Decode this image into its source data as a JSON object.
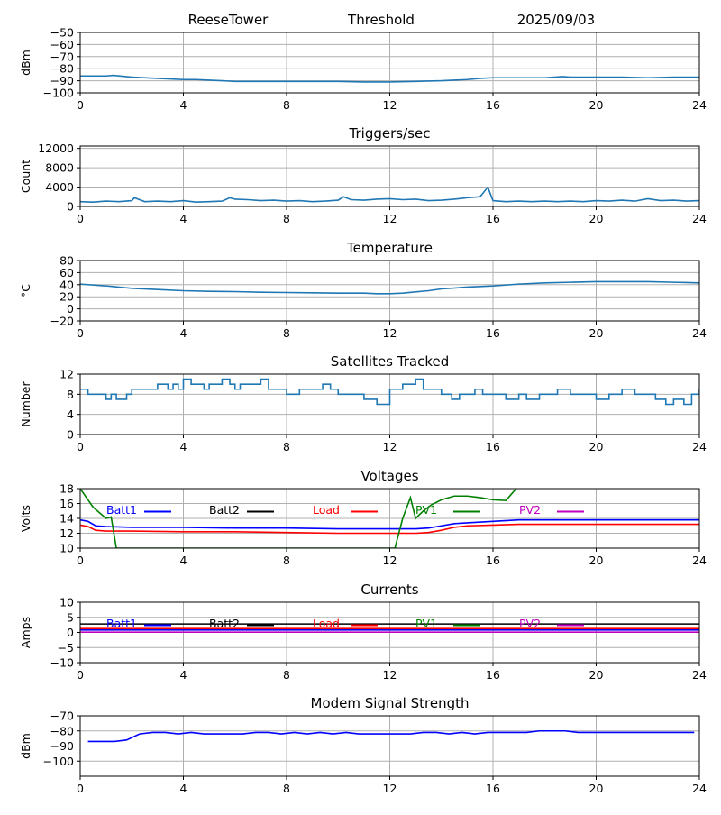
{
  "header": {
    "station": "ReeseTower",
    "title": "Threshold",
    "date": "2025/09/03"
  },
  "legend_labels": [
    "Batt1",
    "Batt2",
    "Load",
    "PV1",
    "PV2"
  ],
  "colors": {
    "main": "#1f77b4",
    "Batt1": "#0000ff",
    "Batt2": "#000000",
    "Load": "#ff0000",
    "PV1": "#008000",
    "PV2": "#bf00bf",
    "grid": "#b0b0b0"
  },
  "chart_data": [
    {
      "type": "line",
      "title": "",
      "xlabel": "",
      "ylabel": "dBm",
      "xlim": [
        0,
        24
      ],
      "ylim": [
        -100,
        -50
      ],
      "xticks": [
        "0",
        "4",
        "8",
        "12",
        "16",
        "20",
        "24"
      ],
      "yticks": [
        "−50",
        "−60",
        "−70",
        "−80",
        "−90",
        "−100"
      ],
      "ytick_values": [
        -50,
        -60,
        -70,
        -80,
        -90,
        -100
      ],
      "grid": true,
      "series": [
        {
          "color_key": "main",
          "x": [
            0,
            1,
            1.3,
            2,
            3,
            3.5,
            4,
            4.5,
            5,
            5.5,
            6,
            7,
            8,
            9,
            10,
            11,
            12,
            13,
            14,
            15,
            15.5,
            16,
            17,
            18,
            18.7,
            19,
            20,
            21,
            22,
            23,
            24
          ],
          "y": [
            -86,
            -86,
            -85.5,
            -87,
            -88,
            -88.5,
            -89,
            -89,
            -89.5,
            -90,
            -90.5,
            -90.5,
            -90.5,
            -90.5,
            -90.5,
            -91,
            -91,
            -90.5,
            -90,
            -89,
            -88,
            -87.5,
            -87.5,
            -87.5,
            -86.5,
            -87,
            -87,
            -87,
            -87.5,
            -87,
            -87
          ]
        }
      ]
    },
    {
      "type": "line",
      "title": "Triggers/sec",
      "xlabel": "",
      "ylabel": "Count",
      "xlim": [
        0,
        24
      ],
      "ylim": [
        0,
        12500
      ],
      "xticks": [
        "0",
        "4",
        "8",
        "12",
        "16",
        "20",
        "24"
      ],
      "yticks": [
        "0",
        "4000",
        "8000",
        "12000"
      ],
      "ytick_values": [
        0,
        4000,
        8000,
        12000
      ],
      "grid": true,
      "series": [
        {
          "color_key": "main",
          "x": [
            0,
            0.5,
            1,
            1.5,
            2,
            2.1,
            2.5,
            3,
            3.5,
            4,
            4.5,
            5,
            5.5,
            5.8,
            6,
            6.5,
            7,
            7.5,
            8,
            8.5,
            9,
            9.5,
            10,
            10.2,
            10.5,
            11,
            11.5,
            12,
            12.5,
            13,
            13.5,
            14,
            14.5,
            15,
            15.5,
            15.8,
            16,
            16.5,
            17,
            17.5,
            18,
            18.5,
            19,
            19.5,
            20,
            20.5,
            21,
            21.5,
            22,
            22.5,
            23,
            23.5,
            24
          ],
          "y": [
            1000,
            900,
            1100,
            1000,
            1200,
            1800,
            1000,
            1100,
            1000,
            1200,
            900,
            1000,
            1100,
            1800,
            1500,
            1400,
            1200,
            1300,
            1100,
            1200,
            1000,
            1100,
            1300,
            2000,
            1400,
            1300,
            1500,
            1600,
            1400,
            1500,
            1200,
            1300,
            1500,
            1800,
            2000,
            4000,
            1200,
            1000,
            1100,
            1000,
            1100,
            1000,
            1100,
            1000,
            1200,
            1100,
            1300,
            1100,
            1600,
            1200,
            1300,
            1100,
            1200
          ]
        }
      ]
    },
    {
      "type": "line",
      "title": "Temperature",
      "xlabel": "",
      "ylabel": "°C",
      "xlim": [
        0,
        24
      ],
      "ylim": [
        -20,
        80
      ],
      "xticks": [
        "0",
        "4",
        "8",
        "12",
        "16",
        "20",
        "24"
      ],
      "yticks": [
        "−20",
        "0",
        "20",
        "40",
        "60",
        "80"
      ],
      "ytick_values": [
        -20,
        0,
        20,
        40,
        60,
        80
      ],
      "grid": true,
      "series": [
        {
          "color_key": "main",
          "x": [
            0,
            1,
            2,
            3,
            4,
            5,
            6,
            7,
            8,
            9,
            10,
            11,
            11.5,
            12,
            12.5,
            13,
            13.5,
            14,
            15,
            16,
            17,
            18,
            19,
            20,
            21,
            22,
            23,
            24
          ],
          "y": [
            41,
            38,
            34,
            32,
            30,
            29,
            28.5,
            27.5,
            27,
            26.5,
            26,
            26,
            25,
            25,
            26,
            28,
            30,
            33,
            36,
            38,
            41,
            43,
            44,
            45,
            45,
            45,
            44,
            43
          ]
        }
      ]
    },
    {
      "type": "line",
      "title": "Satellites Tracked",
      "xlabel": "",
      "ylabel": "Number",
      "xlim": [
        0,
        24
      ],
      "ylim": [
        0,
        12
      ],
      "xticks": [
        "0",
        "4",
        "8",
        "12",
        "16",
        "20",
        "24"
      ],
      "yticks": [
        "0",
        "4",
        "8",
        "12"
      ],
      "ytick_values": [
        0,
        4,
        8,
        12
      ],
      "grid": true,
      "step": true,
      "series": [
        {
          "color_key": "main",
          "x": [
            0,
            0.3,
            0.8,
            1,
            1.2,
            1.4,
            1.8,
            2,
            2.5,
            3,
            3.4,
            3.6,
            3.8,
            4,
            4.3,
            4.8,
            5,
            5.5,
            5.8,
            6,
            6.2,
            6.5,
            7,
            7.3,
            7.6,
            8,
            8.5,
            9,
            9.4,
            9.7,
            10,
            10.5,
            11,
            11.5,
            12,
            12.5,
            12.8,
            13,
            13.3,
            13.6,
            14,
            14.4,
            14.7,
            15,
            15.3,
            15.6,
            16,
            16.5,
            17,
            17.3,
            17.8,
            18.5,
            19,
            19.5,
            20,
            20.5,
            21,
            21.5,
            22,
            22.3,
            22.7,
            23,
            23.4,
            23.7,
            24
          ],
          "y": [
            9,
            8,
            8,
            7,
            8,
            7,
            8,
            9,
            9,
            10,
            9,
            10,
            9,
            11,
            10,
            9,
            10,
            11,
            10,
            9,
            10,
            10,
            11,
            9,
            9,
            8,
            9,
            9,
            10,
            9,
            8,
            8,
            7,
            6,
            9,
            10,
            10,
            11,
            9,
            9,
            8,
            7,
            8,
            8,
            9,
            8,
            8,
            7,
            8,
            7,
            8,
            9,
            8,
            8,
            7,
            8,
            9,
            8,
            8,
            7,
            6,
            7,
            6,
            8,
            9
          ]
        }
      ]
    },
    {
      "type": "line",
      "title": "Voltages",
      "xlabel": "",
      "ylabel": "Volts",
      "xlim": [
        0,
        24
      ],
      "ylim": [
        10,
        18
      ],
      "xticks": [
        "0",
        "4",
        "8",
        "12",
        "16",
        "20",
        "24"
      ],
      "yticks": [
        "10",
        "12",
        "14",
        "16",
        "18"
      ],
      "ytick_values": [
        10,
        12,
        14,
        16,
        18
      ],
      "grid": true,
      "legend": [
        "Batt1",
        "Batt2",
        "Load",
        "PV1",
        "PV2"
      ],
      "legend_placement": "inside-top",
      "series": [
        {
          "name": "Batt1",
          "color_key": "Batt1",
          "x": [
            0,
            0.3,
            0.6,
            1,
            2,
            4,
            6,
            8,
            10,
            12,
            13,
            13.5,
            14,
            14.5,
            15,
            16,
            17,
            18,
            20,
            22,
            24
          ],
          "y": [
            13.8,
            13.6,
            13,
            12.9,
            12.8,
            12.8,
            12.7,
            12.7,
            12.6,
            12.6,
            12.6,
            12.7,
            13,
            13.3,
            13.4,
            13.6,
            13.8,
            13.8,
            13.8,
            13.8,
            13.8
          ]
        },
        {
          "name": "Load",
          "color_key": "Load",
          "x": [
            0,
            0.3,
            0.6,
            1,
            2,
            4,
            6,
            8,
            10,
            12,
            13,
            13.5,
            14,
            14.5,
            15,
            16,
            17,
            18,
            20,
            22,
            24
          ],
          "y": [
            13.1,
            12.9,
            12.4,
            12.3,
            12.3,
            12.2,
            12.2,
            12.1,
            12,
            12,
            12,
            12.1,
            12.4,
            12.8,
            13,
            13.1,
            13.2,
            13.2,
            13.2,
            13.2,
            13.2
          ]
        },
        {
          "name": "PV1",
          "color_key": "PV1",
          "x": [
            0,
            0.5,
            1,
            1.2,
            1.4,
            12.2,
            12.5,
            12.8,
            13,
            13.3,
            13.6,
            14,
            14.5,
            15,
            15.5,
            16,
            16.5,
            16.9
          ],
          "y": [
            18,
            15.5,
            14,
            14.2,
            10,
            10,
            14,
            16.8,
            14,
            15,
            15.8,
            16.5,
            17,
            17,
            16.8,
            16.5,
            16.4,
            18
          ]
        }
      ]
    },
    {
      "type": "line",
      "title": "Currents",
      "xlabel": "",
      "ylabel": "Amps",
      "xlim": [
        0,
        24
      ],
      "ylim": [
        -10,
        10
      ],
      "xticks": [
        "0",
        "4",
        "8",
        "12",
        "16",
        "20",
        "24"
      ],
      "yticks": [
        "−10",
        "−5",
        "0",
        "5",
        "10"
      ],
      "ytick_values": [
        -10,
        -5,
        0,
        5,
        10
      ],
      "grid": true,
      "legend": [
        "Batt1",
        "Batt2",
        "Load",
        "PV1",
        "PV2"
      ],
      "legend_placement": "inside-top",
      "series": [
        {
          "name": "Batt2",
          "color_key": "Batt2",
          "x": [
            0,
            2,
            4,
            6,
            8,
            10,
            12,
            14,
            16,
            18,
            20,
            22,
            24
          ],
          "y": [
            2.8,
            2.8,
            2.8,
            2.8,
            2.8,
            2.8,
            2.8,
            2.8,
            2.8,
            2.8,
            2.8,
            2.8,
            2.8
          ]
        },
        {
          "name": "Load",
          "color_key": "Load",
          "x": [
            0,
            24
          ],
          "y": [
            1.3,
            1.3
          ]
        },
        {
          "name": "Batt1",
          "color_key": "Batt1",
          "x": [
            0,
            24
          ],
          "y": [
            0.8,
            0.8
          ]
        },
        {
          "name": "PV2",
          "color_key": "PV2",
          "x": [
            0,
            24
          ],
          "y": [
            0.1,
            0.1
          ]
        }
      ]
    },
    {
      "type": "line",
      "title": "Modem Signal Strength",
      "xlabel": "",
      "ylabel": "dBm",
      "xlim": [
        0,
        24
      ],
      "ylim": [
        -110,
        -70
      ],
      "xticks": [
        "0",
        "4",
        "8",
        "12",
        "16",
        "20",
        "24"
      ],
      "yticks": [
        "−70",
        "−80",
        "−90",
        "−100"
      ],
      "ytick_values": [
        -70,
        -80,
        -90,
        -100
      ],
      "grid": true,
      "series": [
        {
          "color_key": "Batt1",
          "x": [
            0.3,
            1.3,
            1.8,
            2.3,
            2.8,
            3.3,
            3.8,
            4.3,
            4.8,
            5.3,
            5.8,
            6.3,
            6.8,
            7.3,
            7.8,
            8.3,
            8.8,
            9.3,
            9.8,
            10.3,
            10.8,
            11.3,
            11.8,
            12.3,
            12.8,
            13.3,
            13.8,
            14.3,
            14.8,
            15.3,
            15.8,
            16.3,
            16.8,
            17.3,
            17.8,
            18.3,
            18.8,
            19.3,
            19.8,
            20.3,
            20.8,
            21.3,
            21.8,
            22.3,
            22.8,
            23.3,
            23.8
          ],
          "y": [
            -87,
            -87,
            -86,
            -82,
            -81,
            -81,
            -82,
            -81,
            -82,
            -82,
            -82,
            -82,
            -81,
            -81,
            -82,
            -81,
            -82,
            -81,
            -82,
            -81,
            -82,
            -82,
            -82,
            -82,
            -82,
            -81,
            -81,
            -82,
            -81,
            -82,
            -81,
            -81,
            -81,
            -81,
            -80,
            -80,
            -80,
            -81,
            -81,
            -81,
            -81,
            -81,
            -81,
            -81,
            -81,
            -81,
            -81
          ]
        }
      ]
    }
  ]
}
